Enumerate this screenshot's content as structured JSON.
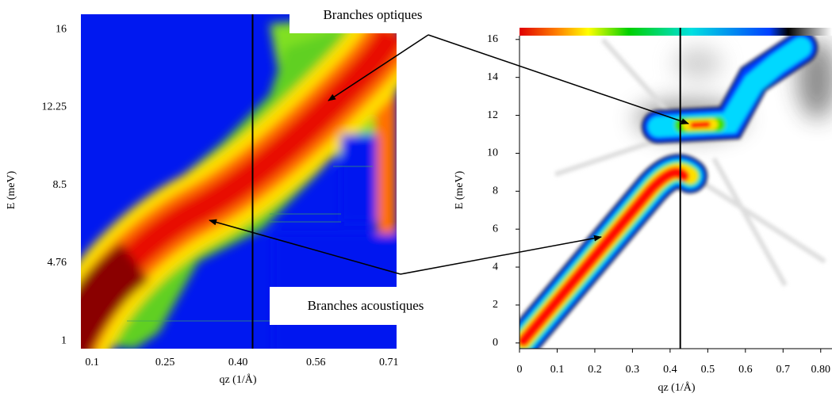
{
  "chart_data": [
    {
      "type": "heatmap",
      "xlabel": "qz (1/Å)",
      "ylabel": "E (meV)",
      "xlim": [
        0.077,
        0.726
      ],
      "ylim": [
        0.62,
        16.73
      ],
      "xticks": [
        0.1,
        0.25,
        {
          "value": 0.4,
          "label": "0.40"
        },
        0.56,
        0.71
      ],
      "yticks": [
        1,
        4.76,
        8.5,
        12.25,
        16
      ],
      "vline_x": 0.43
    },
    {
      "type": "heatmap",
      "xlabel": "qz (1/Å)",
      "ylabel": "E (meV)",
      "xlim": [
        0,
        0.83
      ],
      "ylim": [
        -0.3,
        16.2
      ],
      "xticks": [
        0,
        0.1,
        0.2,
        0.3,
        0.4,
        0.5,
        0.6,
        0.7,
        {
          "value": 0.8,
          "label": "0.80"
        }
      ],
      "yticks": [
        0,
        2,
        4,
        6,
        8,
        10,
        12,
        14,
        16
      ],
      "vline_x": 0.427
    }
  ],
  "annotations": [
    "Branches optiques",
    "Branches acoustiques"
  ]
}
